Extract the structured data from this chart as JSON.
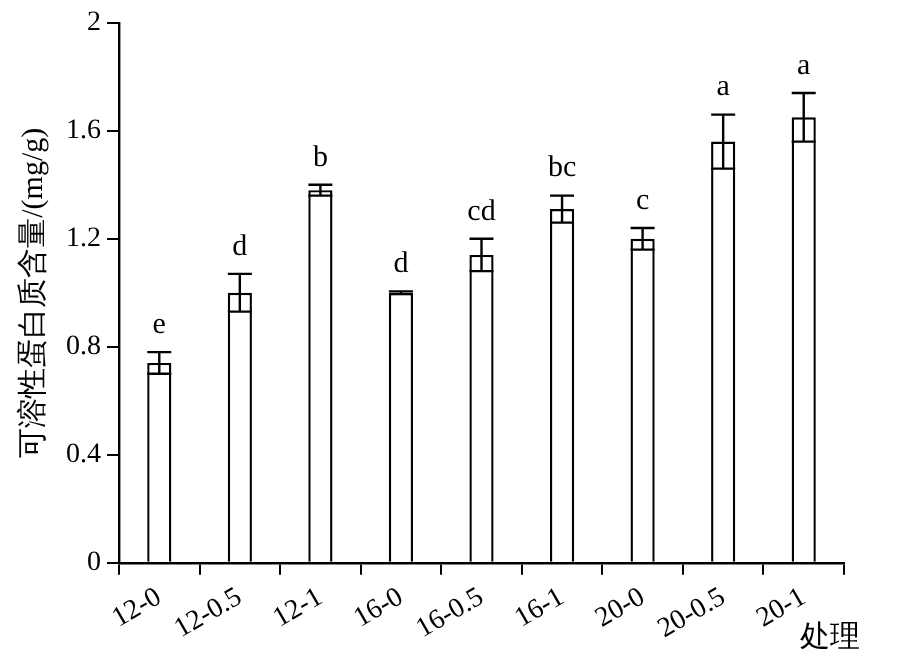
{
  "chart_data": {
    "type": "bar",
    "ylabel": "可溶性蛋白质含量/(mg/g)",
    "xlabel": "处理",
    "categories": [
      "12-0",
      "12-0.5",
      "12-1",
      "16-0",
      "16-0.5",
      "16-1",
      "20-0",
      "20-0.5",
      "20-1"
    ],
    "values": [
      0.74,
      1.0,
      1.38,
      1.0,
      1.14,
      1.31,
      1.2,
      1.56,
      1.65
    ],
    "errors": [
      0.04,
      0.07,
      0.02,
      0.005,
      0.06,
      0.05,
      0.04,
      0.1,
      0.09
    ],
    "color": "#ffffff",
    "ylim": [
      0,
      2
    ],
    "yticks": [
      0,
      0.4,
      0.8,
      1.2,
      1.6,
      2
    ],
    "grid": false,
    "legend": false,
    "annotations": [
      {
        "text": "e",
        "x": "12-0",
        "y": 0.78
      },
      {
        "text": "d",
        "x": "12-0.5",
        "y": 1.07
      },
      {
        "text": "b",
        "x": "12-1",
        "y": 1.4
      },
      {
        "text": "d",
        "x": "16-0",
        "y": 1.005
      },
      {
        "text": "cd",
        "x": "16-0.5",
        "y": 1.2
      },
      {
        "text": "bc",
        "x": "16-1",
        "y": 1.36
      },
      {
        "text": "c",
        "x": "20-0",
        "y": 1.24
      },
      {
        "text": "a",
        "x": "20-0.5",
        "y": 1.66
      },
      {
        "text": "a",
        "x": "20-1",
        "y": 1.74
      }
    ]
  }
}
